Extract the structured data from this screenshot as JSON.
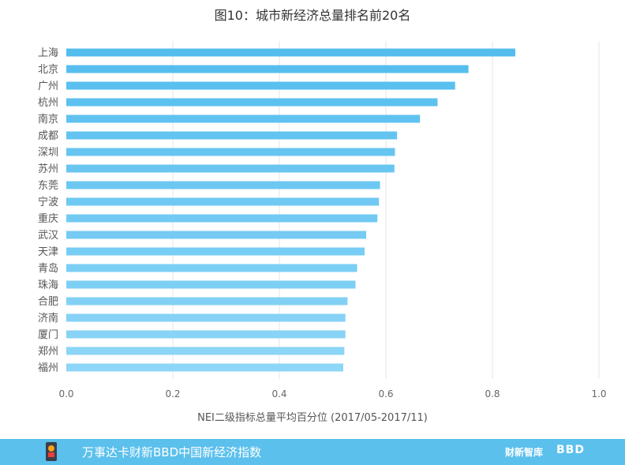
{
  "chart_data": {
    "type": "bar",
    "orientation": "horizontal",
    "title": "图10：城市新经济总量排名前20名",
    "xlabel": "NEI二级指标总量平均百分位 (2017/05-2017/11)",
    "ylabel": "",
    "xlim": [
      0,
      1.0
    ],
    "xticks": [
      "0.0",
      "0.2",
      "0.4",
      "0.6",
      "0.8",
      "1.0"
    ],
    "grid": "vertical",
    "legend": "none",
    "categories": [
      "上海",
      "北京",
      "广州",
      "杭州",
      "南京",
      "成都",
      "深圳",
      "苏州",
      "东莞",
      "宁波",
      "重庆",
      "武汉",
      "天津",
      "青岛",
      "珠海",
      "合肥",
      "济南",
      "厦门",
      "郑州",
      "福州"
    ],
    "values": [
      0.843,
      0.755,
      0.73,
      0.697,
      0.664,
      0.621,
      0.617,
      0.616,
      0.589,
      0.587,
      0.584,
      0.563,
      0.56,
      0.546,
      0.543,
      0.528,
      0.524,
      0.524,
      0.522,
      0.52
    ],
    "colors": {
      "top": "#53bdee",
      "bottom": "#8ed6f7"
    }
  },
  "footer": {
    "text": "万事达卡财新BBD中国新经济指数",
    "brand1": "财新智库",
    "brand2": "BBD",
    "background": "#5bc0ec"
  }
}
